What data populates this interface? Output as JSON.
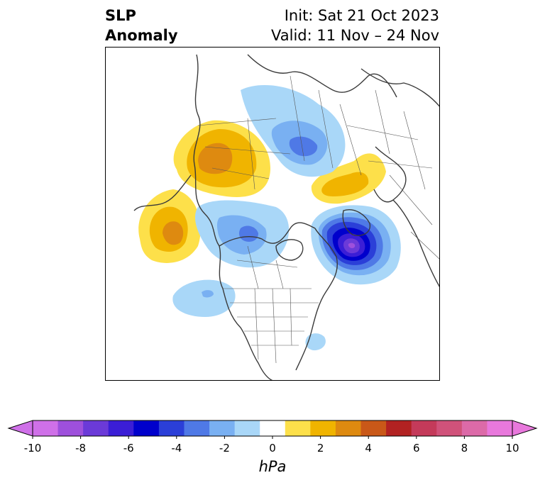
{
  "title": {
    "left_line1": "SLP",
    "left_line2": "Anomaly",
    "init": "Init: Sat 21 Oct 2023",
    "valid": "Valid: 11 Nov – 24 Nov"
  },
  "colorbar": {
    "unit": "hPa",
    "range": [
      -10,
      10
    ],
    "extend": "both",
    "ticks": [
      "-10",
      "-8",
      "-6",
      "-4",
      "-2",
      "0",
      "2",
      "4",
      "6",
      "8",
      "10"
    ],
    "colors": [
      "#cf70e8",
      "#9e50dc",
      "#6b3ad8",
      "#3b1ed6",
      "#0000cc",
      "#2b3fd8",
      "#4f79e6",
      "#79b0f2",
      "#a9d7f8",
      "#ffffff",
      "#fde04a",
      "#f0b400",
      "#de8a10",
      "#c95818",
      "#b22222",
      "#c43a5a",
      "#d0527a",
      "#dc6aa8",
      "#e878dc"
    ]
  }
}
